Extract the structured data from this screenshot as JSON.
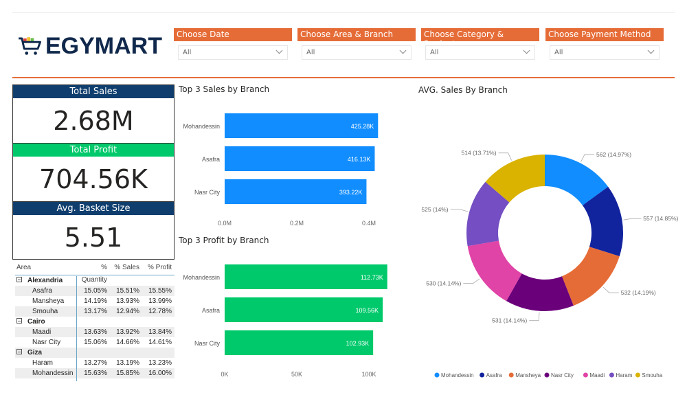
{
  "brand": {
    "name": "EGYMART",
    "colors": {
      "accent": "#E66C37",
      "navy": "#10284b",
      "green": "#00C96B",
      "blue": "#118DFF"
    }
  },
  "slicers": [
    {
      "label": "Choose Date",
      "value": "All"
    },
    {
      "label": "Choose Area & Branch",
      "value": "All"
    },
    {
      "label": "Choose Category & Product",
      "value": "All"
    },
    {
      "label": "Choose Payment Method",
      "value": "All"
    }
  ],
  "kpis": [
    {
      "label": "Total Sales",
      "value": "2.68M",
      "color": "#0F3E6E"
    },
    {
      "label": "Total Profit",
      "value": "704.56K",
      "color": "#00C96B"
    },
    {
      "label": "Avg. Basket Size",
      "value": "5.51",
      "color": "#0F3E6E"
    }
  ],
  "table": {
    "headers": [
      "Area",
      "% Quantity",
      "% Sales",
      "% Profit"
    ],
    "groups": [
      {
        "name": "Alexandria",
        "rows": [
          [
            "Asafra",
            "15.05%",
            "15.51%",
            "15.55%"
          ],
          [
            "Mansheya",
            "14.19%",
            "13.93%",
            "13.99%"
          ],
          [
            "Smouha",
            "13.17%",
            "12.94%",
            "12.78%"
          ]
        ]
      },
      {
        "name": "Cairo",
        "rows": [
          [
            "Maadi",
            "13.63%",
            "13.92%",
            "13.84%"
          ],
          [
            "Nasr City",
            "15.06%",
            "14.66%",
            "14.61%"
          ]
        ]
      },
      {
        "name": "Giza",
        "rows": [
          [
            "Haram",
            "13.27%",
            "13.19%",
            "13.23%"
          ],
          [
            "Mohandessin",
            "15.63%",
            "15.85%",
            "16.00%"
          ]
        ]
      }
    ]
  },
  "chart_data": [
    {
      "type": "bar",
      "orientation": "horizontal",
      "title": "Top 3 Sales by Branch",
      "categories": [
        "Mohandessin",
        "Asafra",
        "Nasr City"
      ],
      "values": [
        425280,
        416130,
        393220
      ],
      "labels": [
        "425.28K",
        "416.13K",
        "393.22K"
      ],
      "xticks": [
        "0.0M",
        "0.2M",
        "0.4M"
      ],
      "xtick_values": [
        0,
        200000,
        400000
      ],
      "color": "#118DFF",
      "grid": false
    },
    {
      "type": "bar",
      "orientation": "horizontal",
      "title": "Top 3 Profit by Branch",
      "categories": [
        "Mohandessin",
        "Asafra",
        "Nasr City"
      ],
      "values": [
        112730,
        109560,
        102930
      ],
      "labels": [
        "112.73K",
        "109.56K",
        "102.93K"
      ],
      "xticks": [
        "0K",
        "50K",
        "100K"
      ],
      "xtick_values": [
        0,
        50000,
        100000
      ],
      "color": "#00C96B",
      "grid": false
    },
    {
      "type": "pie",
      "donut": true,
      "title": "AVG. Sales By Branch",
      "categories": [
        "Mohandessin",
        "Asafra",
        "Mansheya",
        "Nasr City",
        "Maadi",
        "Haram",
        "Smouha"
      ],
      "values": [
        562,
        557,
        532,
        531,
        530,
        525,
        514
      ],
      "labels": [
        "562 (14.97%)",
        "557 (14.85%)",
        "532 (14.19%)",
        "531 (14.14%)",
        "530 (14.14%)",
        "525 (14%)",
        "514 (13.71%)"
      ],
      "colors": [
        "#118DFF",
        "#12239E",
        "#E66C37",
        "#6B007B",
        "#E044A7",
        "#744EC2",
        "#D9B300"
      ],
      "legend": "bottom"
    }
  ]
}
